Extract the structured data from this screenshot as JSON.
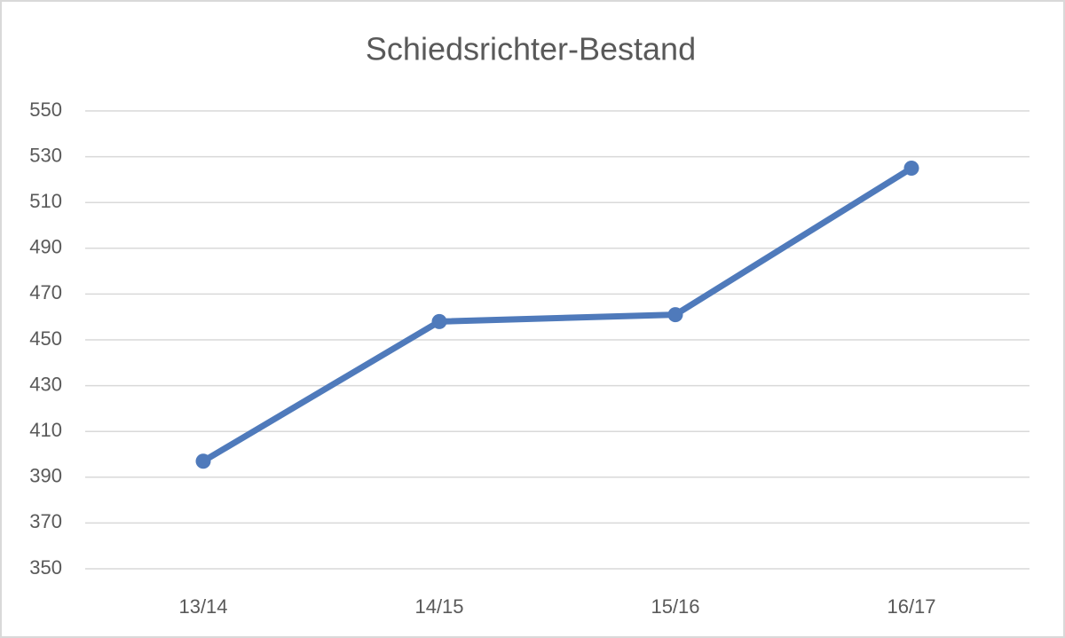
{
  "chart_data": {
    "type": "line",
    "title": "Schiedsrichter-Bestand",
    "categories": [
      "13/14",
      "14/15",
      "15/16",
      "16/17"
    ],
    "values": [
      397,
      458,
      461,
      525
    ],
    "color": "#4f7abb",
    "ylim": [
      350,
      550
    ],
    "yticks": [
      350,
      370,
      390,
      410,
      430,
      450,
      470,
      490,
      510,
      530,
      550
    ],
    "grid": true
  }
}
